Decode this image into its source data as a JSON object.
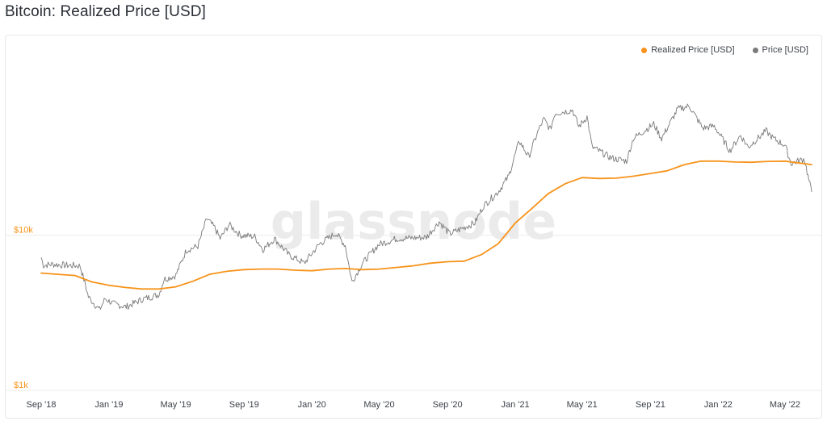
{
  "title": "Bitcoin: Realized Price [USD]",
  "watermark": "glassnode",
  "colors": {
    "realized": "#f7931a",
    "price": "#7a7a7a",
    "ytick": "#f7931a",
    "xtick": "#3c4148",
    "grid": "#ececec"
  },
  "chart_data": {
    "type": "line",
    "title": "Bitcoin: Realized Price [USD]",
    "xlabel": "",
    "ylabel": "",
    "y_scale": "log",
    "ylim": [
      1000,
      120000
    ],
    "xlim": [
      "2018-09-01",
      "2022-06-18"
    ],
    "grid": true,
    "legend_position": "top-right",
    "y_ticks": [
      {
        "value": 1000,
        "label": "$1k"
      },
      {
        "value": 10000,
        "label": "$10k"
      }
    ],
    "x_ticks": [
      {
        "date": "2018-09-01",
        "label": "Sep '18"
      },
      {
        "date": "2019-01-01",
        "label": "Jan '19"
      },
      {
        "date": "2019-05-01",
        "label": "May '19"
      },
      {
        "date": "2019-09-01",
        "label": "Sep '19"
      },
      {
        "date": "2020-01-01",
        "label": "Jan '20"
      },
      {
        "date": "2020-05-01",
        "label": "May '20"
      },
      {
        "date": "2020-09-01",
        "label": "Sep '20"
      },
      {
        "date": "2021-01-01",
        "label": "Jan '21"
      },
      {
        "date": "2021-05-01",
        "label": "May '21"
      },
      {
        "date": "2021-09-01",
        "label": "Sep '21"
      },
      {
        "date": "2022-01-01",
        "label": "Jan '22"
      },
      {
        "date": "2022-05-01",
        "label": "May '22"
      }
    ],
    "series": [
      {
        "name": "Realized Price [USD]",
        "color": "#f7931a",
        "points": [
          [
            "2018-09-01",
            5700
          ],
          [
            "2018-10-01",
            5600
          ],
          [
            "2018-11-01",
            5500
          ],
          [
            "2018-12-01",
            5000
          ],
          [
            "2019-01-01",
            4750
          ],
          [
            "2019-02-01",
            4600
          ],
          [
            "2019-03-01",
            4500
          ],
          [
            "2019-04-01",
            4500
          ],
          [
            "2019-05-01",
            4650
          ],
          [
            "2019-06-01",
            5050
          ],
          [
            "2019-07-01",
            5600
          ],
          [
            "2019-08-01",
            5850
          ],
          [
            "2019-09-01",
            6000
          ],
          [
            "2019-10-01",
            6050
          ],
          [
            "2019-11-01",
            6050
          ],
          [
            "2019-12-01",
            5950
          ],
          [
            "2020-01-01",
            5900
          ],
          [
            "2020-02-01",
            6050
          ],
          [
            "2020-03-01",
            6100
          ],
          [
            "2020-04-01",
            6000
          ],
          [
            "2020-05-01",
            6050
          ],
          [
            "2020-06-01",
            6200
          ],
          [
            "2020-07-01",
            6350
          ],
          [
            "2020-08-01",
            6600
          ],
          [
            "2020-09-01",
            6750
          ],
          [
            "2020-10-01",
            6800
          ],
          [
            "2020-11-01",
            7500
          ],
          [
            "2020-12-01",
            8800
          ],
          [
            "2021-01-01",
            12000
          ],
          [
            "2021-02-01",
            15000
          ],
          [
            "2021-03-01",
            18500
          ],
          [
            "2021-04-01",
            21500
          ],
          [
            "2021-05-01",
            23500
          ],
          [
            "2021-06-01",
            23200
          ],
          [
            "2021-07-01",
            23300
          ],
          [
            "2021-08-01",
            24000
          ],
          [
            "2021-09-01",
            25000
          ],
          [
            "2021-10-01",
            26000
          ],
          [
            "2021-11-01",
            28500
          ],
          [
            "2021-12-01",
            30000
          ],
          [
            "2022-01-01",
            30000
          ],
          [
            "2022-02-01",
            29600
          ],
          [
            "2022-03-01",
            29500
          ],
          [
            "2022-04-01",
            29900
          ],
          [
            "2022-05-01",
            30000
          ],
          [
            "2022-06-18",
            28500
          ]
        ]
      },
      {
        "name": "Price [USD]",
        "color": "#7a7a7a",
        "points": [
          [
            "2018-09-01",
            7200
          ],
          [
            "2018-09-05",
            6400
          ],
          [
            "2018-09-20",
            6500
          ],
          [
            "2018-10-15",
            6400
          ],
          [
            "2018-11-10",
            6350
          ],
          [
            "2018-11-20",
            4700
          ],
          [
            "2018-11-25",
            4000
          ],
          [
            "2018-12-15",
            3300
          ],
          [
            "2018-12-25",
            3900
          ],
          [
            "2019-01-10",
            3600
          ],
          [
            "2019-02-01",
            3450
          ],
          [
            "2019-03-01",
            3850
          ],
          [
            "2019-04-01",
            4150
          ],
          [
            "2019-04-10",
            5200
          ],
          [
            "2019-05-01",
            5500
          ],
          [
            "2019-05-20",
            8000
          ],
          [
            "2019-06-10",
            8500
          ],
          [
            "2019-06-26",
            12800
          ],
          [
            "2019-07-10",
            11200
          ],
          [
            "2019-07-20",
            9500
          ],
          [
            "2019-08-05",
            11700
          ],
          [
            "2019-08-25",
            10000
          ],
          [
            "2019-09-20",
            9800
          ],
          [
            "2019-10-05",
            8100
          ],
          [
            "2019-10-26",
            9500
          ],
          [
            "2019-11-20",
            7500
          ],
          [
            "2019-12-18",
            6600
          ],
          [
            "2020-01-15",
            8800
          ],
          [
            "2020-02-13",
            10300
          ],
          [
            "2020-03-01",
            8600
          ],
          [
            "2020-03-13",
            5000
          ],
          [
            "2020-04-01",
            6600
          ],
          [
            "2020-04-30",
            8700
          ],
          [
            "2020-06-01",
            9500
          ],
          [
            "2020-07-25",
            9700
          ],
          [
            "2020-08-17",
            12200
          ],
          [
            "2020-09-05",
            10200
          ],
          [
            "2020-10-20",
            12000
          ],
          [
            "2020-11-05",
            15500
          ],
          [
            "2020-12-01",
            19000
          ],
          [
            "2020-12-20",
            24000
          ],
          [
            "2021-01-08",
            40500
          ],
          [
            "2021-01-25",
            32000
          ],
          [
            "2021-02-10",
            46000
          ],
          [
            "2021-02-21",
            56000
          ],
          [
            "2021-03-05",
            48000
          ],
          [
            "2021-03-13",
            61000
          ],
          [
            "2021-04-14",
            64000
          ],
          [
            "2021-04-25",
            50000
          ],
          [
            "2021-05-10",
            58000
          ],
          [
            "2021-05-19",
            37000
          ],
          [
            "2021-06-22",
            31500
          ],
          [
            "2021-07-20",
            30000
          ],
          [
            "2021-08-01",
            42000
          ],
          [
            "2021-09-07",
            52000
          ],
          [
            "2021-09-21",
            42000
          ],
          [
            "2021-10-20",
            65000
          ],
          [
            "2021-11-10",
            68000
          ],
          [
            "2021-12-04",
            49000
          ],
          [
            "2021-12-25",
            50500
          ],
          [
            "2022-01-22",
            35000
          ],
          [
            "2022-02-10",
            44000
          ],
          [
            "2022-02-24",
            37000
          ],
          [
            "2022-03-28",
            47000
          ],
          [
            "2022-04-10",
            42000
          ],
          [
            "2022-05-01",
            38000
          ],
          [
            "2022-05-12",
            29000
          ],
          [
            "2022-06-05",
            31000
          ],
          [
            "2022-06-13",
            22500
          ],
          [
            "2022-06-18",
            19000
          ]
        ]
      }
    ]
  }
}
